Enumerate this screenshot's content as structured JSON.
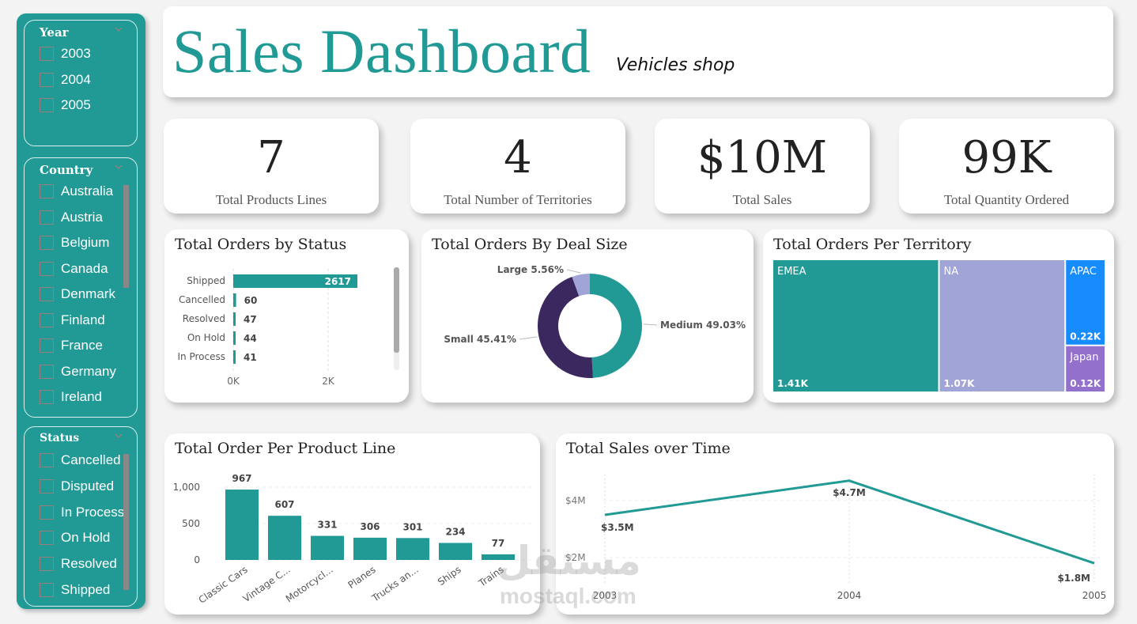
{
  "colors": {
    "teal": "#219a96",
    "lavender": "#a0a4d6",
    "dark_purple": "#3b285f",
    "blue": "#168cff",
    "purple": "#9270cb"
  },
  "slicers": {
    "year": {
      "title": "Year",
      "items": [
        "2003",
        "2004",
        "2005"
      ]
    },
    "country": {
      "title": "Country",
      "items": [
        "Australia",
        "Austria",
        "Belgium",
        "Canada",
        "Denmark",
        "Finland",
        "France",
        "Germany",
        "Ireland"
      ]
    },
    "status": {
      "title": "Status",
      "items": [
        "Cancelled",
        "Disputed",
        "In Process",
        "On Hold",
        "Resolved",
        "Shipped"
      ]
    }
  },
  "header": {
    "title": "Sales Dashboard",
    "subtitle": "Vehicles shop"
  },
  "kpis": [
    {
      "value": "7",
      "label": "Total Products Lines"
    },
    {
      "value": "4",
      "label": "Total Number of Territories"
    },
    {
      "value": "$10M",
      "label": "Total Sales"
    },
    {
      "value": "99K",
      "label": "Total Quantity Ordered"
    }
  ],
  "watermark": {
    "arabic": "مستقل",
    "latin": "mostaql.com"
  },
  "chart_data": [
    {
      "id": "status",
      "type": "bar",
      "orientation": "horizontal",
      "title": "Total Orders by Status",
      "categories": [
        "Shipped",
        "Cancelled",
        "Resolved",
        "On Hold",
        "In Process"
      ],
      "values": [
        2617,
        60,
        47,
        44,
        41
      ],
      "data_labels": [
        "2617",
        "60",
        "47",
        "44",
        "41"
      ],
      "xticks": [
        "0K",
        "2K"
      ],
      "xlim": [
        0,
        3000
      ],
      "grid": true
    },
    {
      "id": "dealsize",
      "type": "pie",
      "variant": "donut",
      "title": "Total Orders By Deal Size",
      "slices": [
        {
          "name": "Medium",
          "value": 49.03,
          "label": "Medium 49.03%",
          "color": "#219a96"
        },
        {
          "name": "Small",
          "value": 45.41,
          "label": "Small 45.41%",
          "color": "#3b285f"
        },
        {
          "name": "Large",
          "value": 5.56,
          "label": "Large 5.56%",
          "color": "#a0a4d6"
        }
      ]
    },
    {
      "id": "territory",
      "type": "treemap",
      "title": "Total Orders Per Territory",
      "items": [
        {
          "name": "EMEA",
          "value": 1410,
          "label": "1.41K",
          "color": "#219a96"
        },
        {
          "name": "NA",
          "value": 1070,
          "label": "1.07K",
          "color": "#a0a4d6"
        },
        {
          "name": "APAC",
          "value": 220,
          "label": "0.22K",
          "color": "#168cff"
        },
        {
          "name": "Japan",
          "value": 120,
          "label": "0.12K",
          "color": "#9270cb"
        }
      ]
    },
    {
      "id": "productline",
      "type": "bar",
      "title": "Total Order Per Product Line",
      "categories": [
        "Classic Cars",
        "Vintage C...",
        "Motorcycl...",
        "Planes",
        "Trucks an...",
        "Ships",
        "Trains"
      ],
      "values": [
        967,
        607,
        331,
        306,
        301,
        234,
        77
      ],
      "data_labels": [
        "967",
        "607",
        "331",
        "306",
        "301",
        "234",
        "77"
      ],
      "yticks": [
        "0",
        "500",
        "1,000"
      ],
      "ytick_values": [
        0,
        500,
        1000
      ],
      "ylim": [
        0,
        1000
      ],
      "grid": true
    },
    {
      "id": "salestime",
      "type": "line",
      "title": "Total Sales over Time",
      "x": [
        "2003",
        "2004",
        "2005"
      ],
      "values": [
        3.5,
        4.7,
        1.8
      ],
      "data_labels": [
        "$3.5M",
        "$4.7M",
        "$1.8M"
      ],
      "yticks": [
        "$2M",
        "$4M"
      ],
      "ytick_values": [
        2,
        4
      ],
      "ylim": [
        1,
        5
      ],
      "ylabel_unit": "$M",
      "grid": true
    }
  ]
}
